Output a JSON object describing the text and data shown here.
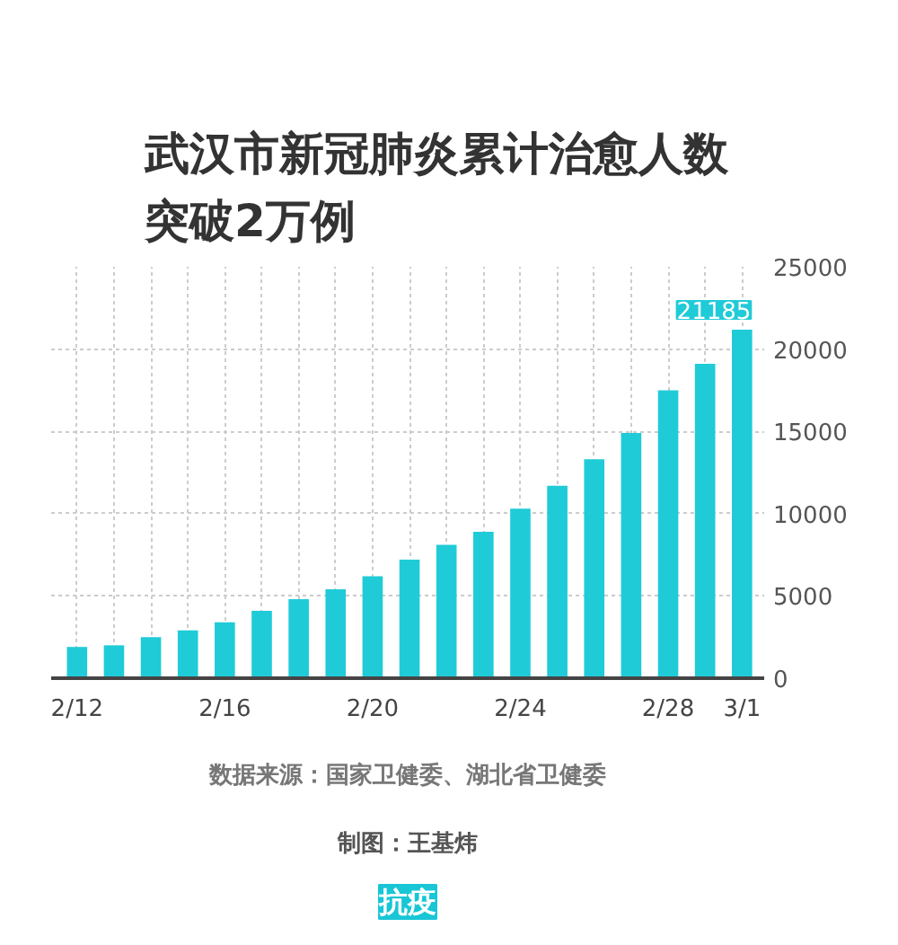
{
  "chart_data": {
    "type": "bar",
    "title": "武汉市新冠肺炎累计治愈人数突破2万例",
    "categories": [
      "2/12",
      null,
      null,
      null,
      "2/16",
      null,
      null,
      null,
      "2/20",
      null,
      null,
      null,
      "2/24",
      null,
      null,
      null,
      "2/28",
      null,
      "3/1"
    ],
    "values": [
      1900,
      2000,
      2500,
      2900,
      3400,
      4100,
      4800,
      5400,
      6200,
      7200,
      8100,
      8900,
      10300,
      11700,
      13300,
      14900,
      17500,
      19100,
      21185
    ],
    "color": "#20cbd8",
    "value_labels": [
      null,
      null,
      null,
      null,
      null,
      null,
      null,
      null,
      null,
      null,
      null,
      null,
      null,
      null,
      null,
      null,
      null,
      null,
      "21185"
    ],
    "ylim": [
      0,
      25000
    ],
    "yticks": [
      0,
      5000,
      10000,
      15000,
      20000,
      25000
    ],
    "grid": true,
    "annotations": [
      "数据来源：国家卫健委、湖北省卫健委",
      "制图：王基炜",
      "抗疫"
    ]
  }
}
